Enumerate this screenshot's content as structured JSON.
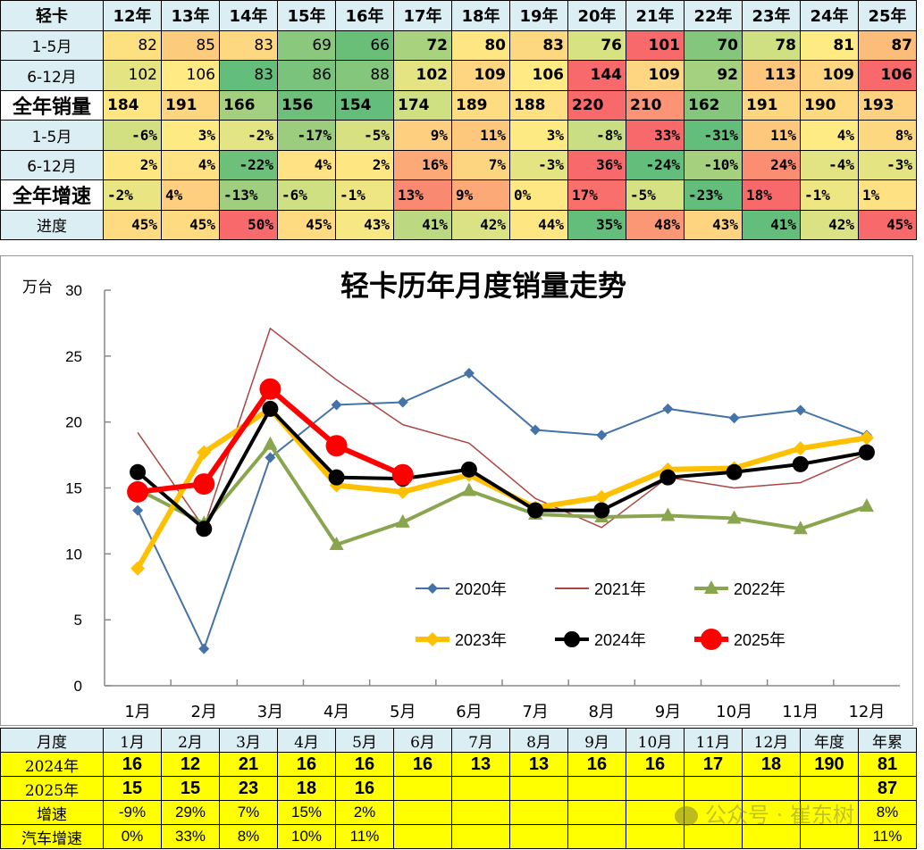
{
  "top_table": {
    "corner": "轻卡",
    "years": [
      "12年",
      "13年",
      "14年",
      "15年",
      "16年",
      "17年",
      "18年",
      "19年",
      "20年",
      "21年",
      "22年",
      "23年",
      "24年",
      "25年"
    ],
    "rows": [
      {
        "label": "1-5月",
        "style": "lbl",
        "cell": "num",
        "values": [
          "82",
          "85",
          "83",
          "69",
          "66",
          "72",
          "80",
          "83",
          "76",
          "101",
          "70",
          "78",
          "81",
          "87"
        ],
        "colors": [
          "#fde07f",
          "#fdcb7c",
          "#fed880",
          "#8ac97d",
          "#6abf78",
          "#a9d27f",
          "#fee683",
          "#fed880",
          "#d7e283",
          "#f8696b",
          "#84c67c",
          "#cfe083",
          "#feeb84",
          "#fdbd7a"
        ]
      },
      {
        "label": "6-12月",
        "style": "lbl",
        "cell": "num",
        "values": [
          "102",
          "106",
          "83",
          "86",
          "88",
          "102",
          "109",
          "106",
          "144",
          "109",
          "92",
          "113",
          "109",
          "106"
        ],
        "colors": [
          "#e5e482",
          "#ffea84",
          "#63be7b",
          "#79c37c",
          "#83c67c",
          "#e5e482",
          "#fed580",
          "#ffea84",
          "#f8696b",
          "#fed580",
          "#a4d17f",
          "#fdc67c",
          "#fed580",
          "#f8696b"
        ]
      },
      {
        "label": "全年销量",
        "style": "big",
        "cell": "left",
        "values": [
          "184",
          "191",
          "166",
          "156",
          "154",
          "174",
          "189",
          "188",
          "220",
          "210",
          "162",
          "191",
          "190",
          "193"
        ],
        "colors": [
          "#fee683",
          "#fed680",
          "#a3d07e",
          "#6dbf79",
          "#63be7b",
          "#cfe083",
          "#fedd82",
          "#fee082",
          "#f8696b",
          "#fb9374",
          "#84c67c",
          "#fed680",
          "#fed980",
          "#fed180"
        ]
      },
      {
        "label": "1-5月",
        "style": "lbl",
        "cell": "pct",
        "values": [
          "-6%",
          "3%",
          "-2%",
          "-17%",
          "-5%",
          "9%",
          "11%",
          "3%",
          "-8%",
          "33%",
          "-31%",
          "11%",
          "4%",
          "8%"
        ],
        "colors": [
          "#d2e082",
          "#feea83",
          "#e3e483",
          "#9ccd7e",
          "#d8e182",
          "#fecf7f",
          "#fdc77c",
          "#feea83",
          "#c9de82",
          "#f8696b",
          "#63be7b",
          "#fdc77c",
          "#ffeb84",
          "#fed880"
        ]
      },
      {
        "label": "6-12月",
        "style": "lbl",
        "cell": "pct",
        "values": [
          "2%",
          "4%",
          "-22%",
          "4%",
          "2%",
          "16%",
          "7%",
          "-3%",
          "36%",
          "-24%",
          "-10%",
          "24%",
          "-4%",
          "-3%"
        ],
        "colors": [
          "#fee783",
          "#fee283",
          "#6cc07a",
          "#fee283",
          "#fee783",
          "#fca977",
          "#fdd580",
          "#e5e482",
          "#f8696b",
          "#63be7b",
          "#a5d17e",
          "#fb8d72",
          "#e2e383",
          "#e5e482"
        ]
      },
      {
        "label": "全年增速",
        "style": "big",
        "cell": "pctl",
        "values": [
          "-2%",
          "4%",
          "-13%",
          "-6%",
          "-1%",
          "13%",
          "9%",
          "0%",
          "17%",
          "-5%",
          "-23%",
          "18%",
          "-1%",
          "1%"
        ],
        "colors": [
          "#e9e583",
          "#fecf7f",
          "#9fcf7e",
          "#cfe082",
          "#eee683",
          "#f98a71",
          "#fca977",
          "#fee883",
          "#f86f6c",
          "#d5e182",
          "#63be7b",
          "#f8696b",
          "#eee683",
          "#fee183"
        ]
      },
      {
        "label": "进度",
        "style": "lbl",
        "cell": "pct",
        "values": [
          "45%",
          "45%",
          "50%",
          "45%",
          "43%",
          "41%",
          "42%",
          "44%",
          "35%",
          "48%",
          "43%",
          "41%",
          "42%",
          "45%"
        ],
        "colors": [
          "#fedb81",
          "#fedb81",
          "#f8696b",
          "#fedb81",
          "#f7e884",
          "#bcd981",
          "#dbe283",
          "#fee783",
          "#63be7b",
          "#fb9774",
          "#fed480",
          "#63be7b",
          "#dbe283",
          "#f8696b"
        ]
      }
    ]
  },
  "chart_data": {
    "type": "line",
    "title": "轻卡历年月度销量走势",
    "ylabel": "万台",
    "xlabel": "",
    "ylim": [
      0,
      30
    ],
    "yticks": [
      0,
      5,
      10,
      15,
      20,
      25,
      30
    ],
    "categories": [
      "1月",
      "2月",
      "3月",
      "4月",
      "5月",
      "6月",
      "7月",
      "8月",
      "9月",
      "10月",
      "11月",
      "12月"
    ],
    "grid": false,
    "legend_position": "inside-lower-right",
    "series": [
      {
        "name": "2020年",
        "color": "#4572a7",
        "width": 2,
        "marker": "diamond",
        "values": [
          13.3,
          2.8,
          17.3,
          21.3,
          21.5,
          23.7,
          19.4,
          19.0,
          21.0,
          20.3,
          20.9,
          19.0
        ]
      },
      {
        "name": "2021年",
        "color": "#aa4643",
        "width": 1.5,
        "marker": "none",
        "values": [
          19.2,
          12.0,
          27.1,
          23.2,
          19.8,
          18.4,
          14.2,
          12.0,
          15.8,
          15.0,
          15.4,
          17.6
        ]
      },
      {
        "name": "2022年",
        "color": "#89a54e",
        "width": 4,
        "marker": "triangle",
        "values": [
          14.9,
          12.3,
          18.3,
          10.7,
          12.4,
          14.8,
          13.0,
          12.8,
          12.9,
          12.7,
          11.9,
          13.6
        ]
      },
      {
        "name": "2023年",
        "color": "#ffc000",
        "width": 6,
        "marker": "diamond",
        "values": [
          8.9,
          17.7,
          21.0,
          15.2,
          14.7,
          16.0,
          13.5,
          14.3,
          16.4,
          16.5,
          18.0,
          18.8
        ]
      },
      {
        "name": "2024年",
        "color": "#000000",
        "width": 4,
        "marker": "circle",
        "values": [
          16.2,
          11.9,
          21.0,
          15.8,
          15.7,
          16.4,
          13.3,
          13.3,
          15.8,
          16.2,
          16.8,
          17.7
        ]
      },
      {
        "name": "2025年",
        "color": "#ff0000",
        "width": 6,
        "marker": "bigcircle",
        "values": [
          14.7,
          15.3,
          22.5,
          18.2,
          16.0
        ]
      }
    ]
  },
  "bottom_table": {
    "headers": [
      "月度",
      "1月",
      "2月",
      "3月",
      "4月",
      "5月",
      "6月",
      "7月",
      "8月",
      "9月",
      "10月",
      "11月",
      "12月",
      "年度",
      "年累"
    ],
    "rows": [
      {
        "label": "2024年",
        "kind": "v",
        "values": [
          "16",
          "12",
          "21",
          "16",
          "16",
          "16",
          "13",
          "13",
          "16",
          "16",
          "17",
          "18",
          "190",
          "81"
        ]
      },
      {
        "label": "2025年",
        "kind": "v",
        "values": [
          "15",
          "15",
          "23",
          "18",
          "16",
          "",
          "",
          "",
          "",
          "",
          "",
          "",
          "",
          "87"
        ]
      },
      {
        "label": "增速",
        "kind": "s",
        "values": [
          "-9%",
          "29%",
          "7%",
          "15%",
          "2%",
          "",
          "",
          "",
          "",
          "",
          "",
          "",
          "",
          "8%"
        ]
      },
      {
        "label": "汽车增速",
        "kind": "s",
        "values": [
          "0%",
          "33%",
          "8%",
          "10%",
          "11%",
          "",
          "",
          "",
          "",
          "",
          "",
          "",
          "",
          "11%"
        ]
      }
    ]
  },
  "watermark": "公众号 · 崔东树"
}
